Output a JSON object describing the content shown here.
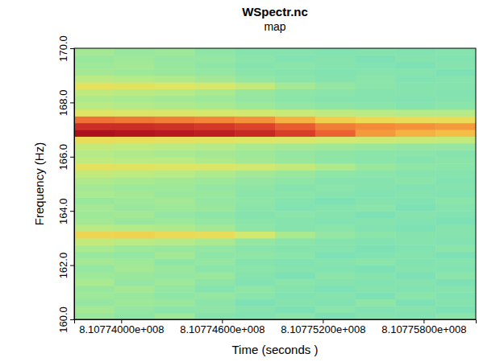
{
  "chart_data": {
    "type": "heatmap",
    "title": "WSpectr.nc",
    "subtitle": "map",
    "x_label": "Time (seconds )",
    "y_label": "Frequency (Hz)",
    "xlim": [
      810773720,
      810776110
    ],
    "xticks": [
      {
        "value": 810774000,
        "label": "8.10774000e+008"
      },
      {
        "value": 810774600,
        "label": "8.10774600e+008"
      },
      {
        "value": 810775200,
        "label": "8.10775200e+008"
      },
      {
        "value": 810775800,
        "label": "8.10775800e+008"
      }
    ],
    "ylim": [
      160,
      170
    ],
    "yticks": [
      {
        "value": 160,
        "label": "160.0"
      },
      {
        "value": 162,
        "label": "162.0"
      },
      {
        "value": 164,
        "label": "164.0"
      },
      {
        "value": 166,
        "label": "166.0"
      },
      {
        "value": 168,
        "label": "168.0"
      },
      {
        "value": 170,
        "label": "170.0"
      }
    ],
    "zlim": [
      0,
      1
    ],
    "x_edges": [
      810773720,
      810773959,
      810774198,
      810774437,
      810774676,
      810774915,
      810775154,
      810775393,
      810775632,
      810775871,
      810776110
    ],
    "y_edges": [
      160,
      160.25,
      160.5,
      160.75,
      161,
      161.25,
      161.5,
      161.75,
      162,
      162.25,
      162.5,
      162.75,
      163,
      163.25,
      163.5,
      163.75,
      164,
      164.25,
      164.5,
      164.75,
      165,
      165.25,
      165.5,
      165.75,
      166,
      166.25,
      166.5,
      166.75,
      167,
      167.25,
      167.5,
      167.75,
      168,
      168.25,
      168.5,
      168.75,
      169,
      169.25,
      169.5,
      169.75,
      170
    ],
    "z": [
      [
        0.44,
        0.42,
        0.45,
        0.4,
        0.39,
        0.41,
        0.38,
        0.4,
        0.39,
        0.41
      ],
      [
        0.46,
        0.43,
        0.41,
        0.42,
        0.4,
        0.38,
        0.41,
        0.39,
        0.4,
        0.38
      ],
      [
        0.43,
        0.45,
        0.44,
        0.41,
        0.38,
        0.4,
        0.39,
        0.42,
        0.38,
        0.4
      ],
      [
        0.45,
        0.44,
        0.42,
        0.43,
        0.41,
        0.39,
        0.4,
        0.38,
        0.41,
        0.39
      ],
      [
        0.44,
        0.46,
        0.43,
        0.4,
        0.42,
        0.4,
        0.38,
        0.4,
        0.39,
        0.4
      ],
      [
        0.47,
        0.43,
        0.45,
        0.42,
        0.39,
        0.41,
        0.4,
        0.39,
        0.4,
        0.38
      ],
      [
        0.45,
        0.44,
        0.43,
        0.44,
        0.4,
        0.38,
        0.41,
        0.4,
        0.38,
        0.41
      ],
      [
        0.43,
        0.46,
        0.44,
        0.41,
        0.41,
        0.4,
        0.39,
        0.38,
        0.4,
        0.39
      ],
      [
        0.46,
        0.45,
        0.42,
        0.43,
        0.4,
        0.39,
        0.4,
        0.41,
        0.39,
        0.4
      ],
      [
        0.44,
        0.43,
        0.46,
        0.42,
        0.42,
        0.41,
        0.38,
        0.39,
        0.4,
        0.38
      ],
      [
        0.47,
        0.45,
        0.44,
        0.43,
        0.41,
        0.4,
        0.4,
        0.38,
        0.39,
        0.41
      ],
      [
        0.52,
        0.5,
        0.49,
        0.47,
        0.43,
        0.41,
        0.4,
        0.39,
        0.4,
        0.39
      ],
      [
        0.64,
        0.65,
        0.63,
        0.62,
        0.55,
        0.47,
        0.43,
        0.41,
        0.4,
        0.4
      ],
      [
        0.5,
        0.49,
        0.48,
        0.46,
        0.42,
        0.4,
        0.41,
        0.39,
        0.38,
        0.4
      ],
      [
        0.46,
        0.44,
        0.45,
        0.43,
        0.41,
        0.4,
        0.39,
        0.4,
        0.39,
        0.38
      ],
      [
        0.45,
        0.46,
        0.43,
        0.42,
        0.4,
        0.41,
        0.4,
        0.38,
        0.4,
        0.39
      ],
      [
        0.46,
        0.44,
        0.45,
        0.44,
        0.41,
        0.39,
        0.4,
        0.41,
        0.38,
        0.4
      ],
      [
        0.44,
        0.45,
        0.46,
        0.43,
        0.42,
        0.4,
        0.38,
        0.4,
        0.39,
        0.41
      ],
      [
        0.47,
        0.46,
        0.44,
        0.44,
        0.41,
        0.41,
        0.4,
        0.39,
        0.4,
        0.39
      ],
      [
        0.46,
        0.45,
        0.45,
        0.43,
        0.42,
        0.4,
        0.41,
        0.4,
        0.39,
        0.4
      ],
      [
        0.48,
        0.47,
        0.46,
        0.45,
        0.43,
        0.42,
        0.4,
        0.4,
        0.41,
        0.39
      ],
      [
        0.52,
        0.51,
        0.5,
        0.48,
        0.46,
        0.44,
        0.42,
        0.41,
        0.4,
        0.4
      ],
      [
        0.6,
        0.59,
        0.58,
        0.57,
        0.55,
        0.52,
        0.48,
        0.44,
        0.42,
        0.41
      ],
      [
        0.51,
        0.5,
        0.5,
        0.48,
        0.46,
        0.44,
        0.42,
        0.41,
        0.4,
        0.41
      ],
      [
        0.49,
        0.48,
        0.47,
        0.46,
        0.45,
        0.43,
        0.42,
        0.41,
        0.41,
        0.4
      ],
      [
        0.52,
        0.51,
        0.5,
        0.49,
        0.47,
        0.46,
        0.45,
        0.44,
        0.43,
        0.43
      ],
      [
        0.62,
        0.61,
        0.6,
        0.59,
        0.58,
        0.57,
        0.55,
        0.54,
        0.53,
        0.52
      ],
      [
        0.99,
        0.98,
        0.97,
        0.96,
        0.94,
        0.9,
        0.84,
        0.76,
        0.72,
        0.7
      ],
      [
        0.93,
        0.93,
        0.92,
        0.91,
        0.89,
        0.85,
        0.8,
        0.78,
        0.77,
        0.76
      ],
      [
        0.82,
        0.81,
        0.8,
        0.79,
        0.77,
        0.72,
        0.66,
        0.63,
        0.62,
        0.62
      ],
      [
        0.58,
        0.57,
        0.57,
        0.56,
        0.55,
        0.53,
        0.51,
        0.5,
        0.49,
        0.49
      ],
      [
        0.5,
        0.49,
        0.48,
        0.47,
        0.45,
        0.43,
        0.42,
        0.41,
        0.4,
        0.41
      ],
      [
        0.48,
        0.47,
        0.46,
        0.45,
        0.43,
        0.41,
        0.4,
        0.4,
        0.39,
        0.4
      ],
      [
        0.51,
        0.5,
        0.49,
        0.47,
        0.44,
        0.42,
        0.41,
        0.4,
        0.4,
        0.39
      ],
      [
        0.6,
        0.59,
        0.58,
        0.56,
        0.52,
        0.46,
        0.43,
        0.41,
        0.4,
        0.4
      ],
      [
        0.5,
        0.49,
        0.48,
        0.46,
        0.43,
        0.41,
        0.4,
        0.41,
        0.39,
        0.4
      ],
      [
        0.46,
        0.45,
        0.44,
        0.43,
        0.41,
        0.4,
        0.39,
        0.4,
        0.4,
        0.38
      ],
      [
        0.45,
        0.46,
        0.44,
        0.42,
        0.4,
        0.41,
        0.4,
        0.39,
        0.38,
        0.4
      ],
      [
        0.44,
        0.45,
        0.43,
        0.43,
        0.41,
        0.39,
        0.4,
        0.38,
        0.4,
        0.39
      ],
      [
        0.46,
        0.44,
        0.45,
        0.42,
        0.4,
        0.4,
        0.39,
        0.4,
        0.39,
        0.4
      ]
    ]
  }
}
